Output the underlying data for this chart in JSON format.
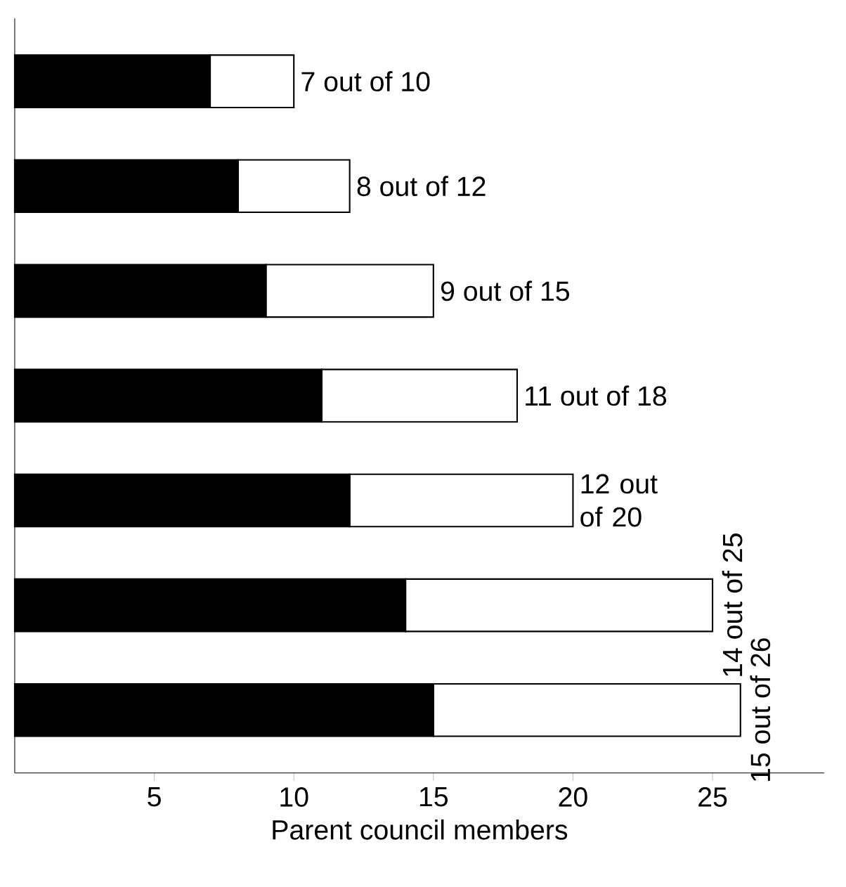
{
  "chart_data": {
    "type": "bar",
    "orientation": "horizontal",
    "stacked": true,
    "categories": [
      null,
      null,
      null,
      null,
      null,
      null,
      null
    ],
    "series": [
      {
        "color": "#000000",
        "values": [
          7,
          8,
          9,
          11,
          12,
          14,
          15
        ]
      },
      {
        "color": "#ffffff",
        "values": [
          3,
          4,
          6,
          7,
          8,
          11,
          11
        ]
      }
    ],
    "totals": [
      "7 out of 10",
      "8 out of 12",
      "9 out of 15",
      "11 out of 18",
      "12 out of 20",
      "14 out of 25",
      "15 out of 26"
    ],
    "xlim": [
      0,
      29
    ],
    "xticks": [
      5,
      10,
      15,
      20,
      25
    ],
    "xlabel": "Parent council members"
  }
}
